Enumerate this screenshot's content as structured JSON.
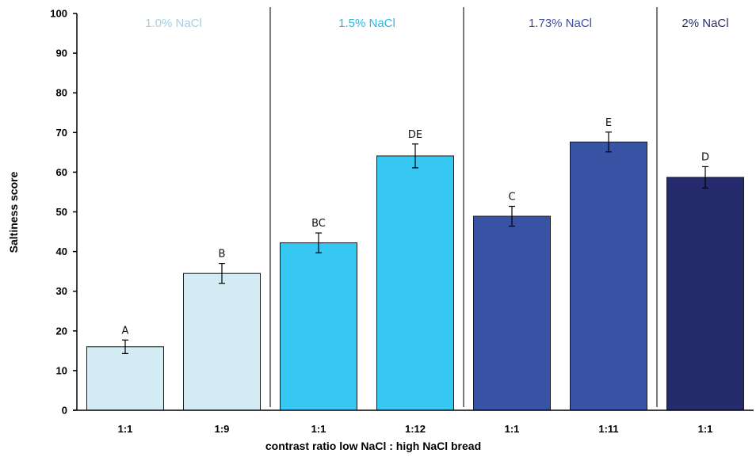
{
  "chart_data": {
    "type": "bar",
    "title": "",
    "ylabel": "Saltiness score",
    "xlabel": "contrast ratio low NaCl : high NaCl bread",
    "ylim": [
      0,
      100
    ],
    "yticks": [
      0,
      10,
      20,
      30,
      40,
      50,
      60,
      70,
      80,
      90,
      100
    ],
    "grid": false,
    "categories": [
      "1:1",
      "1:9",
      "1:1",
      "1:12",
      "1:1",
      "1:11",
      "1:1"
    ],
    "values": [
      16,
      34.5,
      42.2,
      64.1,
      48.9,
      67.6,
      58.7
    ],
    "errors": [
      1.7,
      2.5,
      2.5,
      3.0,
      2.5,
      2.5,
      2.7
    ],
    "letters": [
      "A",
      "B",
      "BC",
      "DE",
      "C",
      "E",
      "D"
    ],
    "bar_colors": [
      "#d3ecf3",
      "#d3ecf3",
      "#36c7f3",
      "#36c7f3",
      "#3953a4",
      "#3953a4",
      "#262b6e"
    ],
    "groups": [
      {
        "label": "1.0% NaCl",
        "bars": [
          0,
          1
        ],
        "color": "#a4cfe6"
      },
      {
        "label": "1.5% NaCl",
        "bars": [
          2,
          3
        ],
        "color": "#2bb7e8"
      },
      {
        "label": "1.73% NaCl",
        "bars": [
          4,
          5
        ],
        "color": "#3a4f9f"
      },
      {
        "label": "2% NaCl",
        "bars": [
          6
        ],
        "color": "#262b6e"
      }
    ]
  }
}
